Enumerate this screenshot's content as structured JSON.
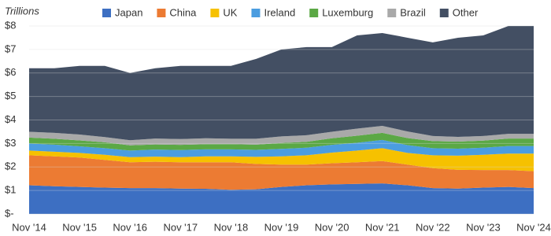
{
  "chart_data": {
    "type": "stacked_area",
    "y_label": "Trillions",
    "categories": [
      "Nov '14",
      null,
      "Nov '15",
      null,
      "Nov '16",
      null,
      "Nov '17",
      null,
      "Nov '18",
      null,
      "Nov '19",
      null,
      "Nov '20",
      null,
      "Nov '21",
      null,
      "Nov '22",
      null,
      "Nov '23",
      null,
      "Nov '24"
    ],
    "series": [
      {
        "name": "Japan",
        "color": "#3d6fc2",
        "values": [
          1.22,
          1.18,
          1.15,
          1.12,
          1.1,
          1.1,
          1.08,
          1.07,
          1.03,
          1.05,
          1.15,
          1.22,
          1.26,
          1.28,
          1.3,
          1.22,
          1.1,
          1.08,
          1.12,
          1.15,
          1.1
        ]
      },
      {
        "name": "China",
        "color": "#ec7b33",
        "values": [
          1.28,
          1.27,
          1.25,
          1.18,
          1.1,
          1.12,
          1.12,
          1.13,
          1.17,
          1.08,
          0.95,
          0.88,
          0.9,
          0.92,
          0.95,
          0.88,
          0.85,
          0.8,
          0.75,
          0.72,
          0.72
        ]
      },
      {
        "name": "UK",
        "color": "#f6c100",
        "values": [
          0.2,
          0.2,
          0.2,
          0.22,
          0.22,
          0.22,
          0.22,
          0.25,
          0.25,
          0.3,
          0.35,
          0.4,
          0.45,
          0.5,
          0.55,
          0.5,
          0.55,
          0.6,
          0.65,
          0.7,
          0.75
        ]
      },
      {
        "name": "Ireland",
        "color": "#4b9de0",
        "values": [
          0.3,
          0.3,
          0.28,
          0.28,
          0.28,
          0.3,
          0.3,
          0.3,
          0.3,
          0.3,
          0.32,
          0.32,
          0.33,
          0.33,
          0.35,
          0.33,
          0.3,
          0.3,
          0.3,
          0.32,
          0.32
        ]
      },
      {
        "name": "Luxemburg",
        "color": "#5ba845",
        "values": [
          0.25,
          0.25,
          0.25,
          0.25,
          0.22,
          0.22,
          0.22,
          0.22,
          0.22,
          0.22,
          0.25,
          0.25,
          0.28,
          0.3,
          0.3,
          0.3,
          0.3,
          0.3,
          0.3,
          0.32,
          0.32
        ]
      },
      {
        "name": "Brazil",
        "color": "#a9a9a9",
        "values": [
          0.25,
          0.25,
          0.25,
          0.22,
          0.22,
          0.25,
          0.25,
          0.25,
          0.23,
          0.25,
          0.28,
          0.28,
          0.28,
          0.3,
          0.3,
          0.28,
          0.22,
          0.2,
          0.2,
          0.2,
          0.2
        ]
      },
      {
        "name": "Other",
        "color": "#434f63",
        "values": [
          2.7,
          2.75,
          2.92,
          3.03,
          2.86,
          2.99,
          3.11,
          3.08,
          3.1,
          3.4,
          3.7,
          3.75,
          3.6,
          3.97,
          3.95,
          3.99,
          3.98,
          4.22,
          4.28,
          4.59,
          4.59
        ]
      }
    ],
    "ylim": [
      0,
      8
    ],
    "yticks": [
      {
        "value": 0,
        "label": "$-"
      },
      {
        "value": 1,
        "label": "$1"
      },
      {
        "value": 2,
        "label": "$2"
      },
      {
        "value": 3,
        "label": "$3"
      },
      {
        "value": 4,
        "label": "$4"
      },
      {
        "value": 5,
        "label": "$5"
      },
      {
        "value": 6,
        "label": "$6"
      },
      {
        "value": 7,
        "label": "$7"
      },
      {
        "value": 8,
        "label": "$8"
      }
    ],
    "grid": true
  }
}
